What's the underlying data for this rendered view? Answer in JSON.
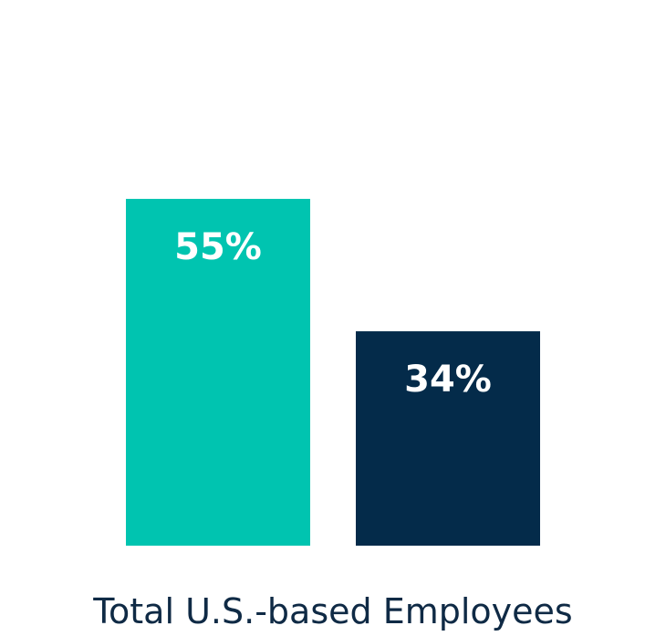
{
  "chart_data": {
    "type": "bar",
    "title": "",
    "xlabel": "",
    "ylabel": "",
    "categories": [
      "Total U.S.-based Employees"
    ],
    "series": [
      {
        "values": [
          55
        ],
        "color": "#00c4b0",
        "label": "55%"
      },
      {
        "values": [
          34
        ],
        "color": "#042b4a",
        "label": "34%"
      }
    ],
    "ylim": [
      0,
      100
    ],
    "grid": false,
    "legend": "none"
  }
}
